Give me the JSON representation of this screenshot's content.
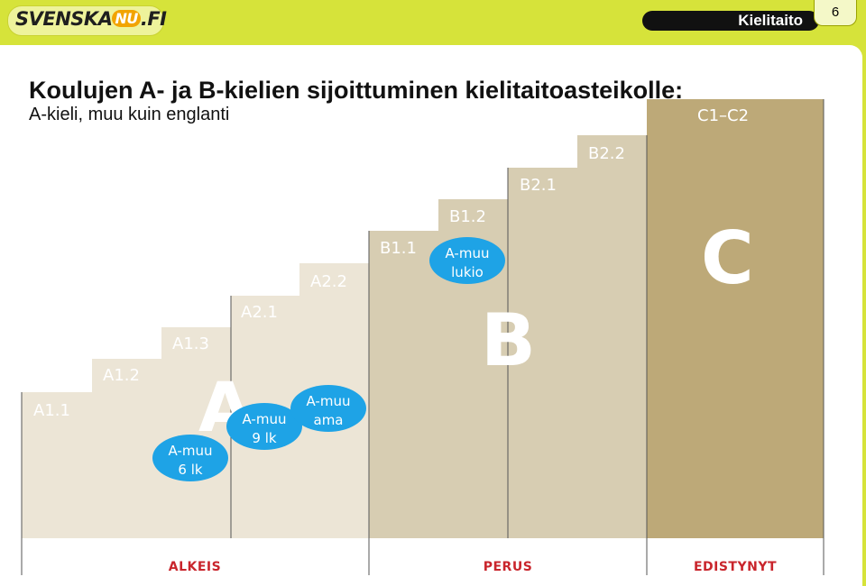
{
  "header": {
    "logo": {
      "pre": "SVENSKA",
      "nu": "NU",
      "post": ".FI"
    },
    "topic": "Kielitaito",
    "page_number": "6"
  },
  "title": "Koulujen A- ja B-kielien sijoittuminen kielitaitoasteikolle:",
  "subtitle": "A-kieli, muu kuin englanti",
  "levels": [
    "A1.1",
    "A1.2",
    "A1.3",
    "A2.1",
    "A2.2",
    "B1.1",
    "B1.2",
    "B2.1",
    "B2.2",
    "C1–C2"
  ],
  "big_letters": [
    "A",
    "B",
    "C"
  ],
  "bubbles": [
    {
      "line1": "A-muu",
      "line2": "6 lk"
    },
    {
      "line1": "A-muu",
      "line2": "9 lk"
    },
    {
      "line1": "A-muu",
      "line2": "ama"
    },
    {
      "line1": "A-muu",
      "line2": "lukio"
    }
  ],
  "bands": [
    "ALKEIS",
    "PERUS",
    "EDISTYNYT"
  ],
  "colors": {
    "brand_green": "#d6e33a",
    "a_level": "#ece5d6",
    "b_level": "#d7cdb2",
    "c_level": "#bda978",
    "bubble": "#1ea3e6",
    "band_text": "#c9252c"
  }
}
